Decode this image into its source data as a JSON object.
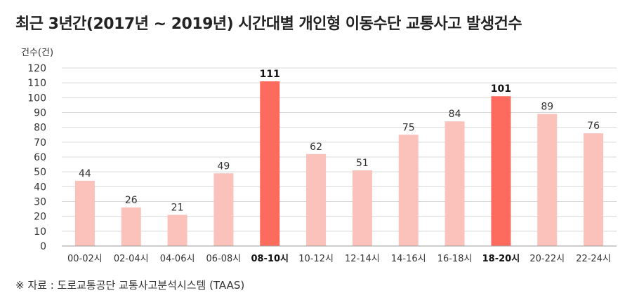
{
  "header": {
    "title": "최근 3년간(2017년 ~ 2019년) 시간대별 개인형 이동수단 교통사고 발생건수"
  },
  "footer": {
    "source": "※ 자료 : 도로교통공단 교통사고분석시스템 (TAAS)"
  },
  "chart_data": {
    "type": "bar",
    "title": "최근 3년간(2017년 ~ 2019년) 시간대별 개인형 이동수단 교통사고 발생건수",
    "ylabel": "건수(건)",
    "xlabel": "",
    "ylim": [
      0,
      120
    ],
    "yticks": [
      0,
      10,
      20,
      30,
      40,
      50,
      60,
      70,
      80,
      90,
      100,
      110,
      120
    ],
    "grid": true,
    "categories": [
      "00-02시",
      "02-04시",
      "04-06시",
      "06-08시",
      "08-10시",
      "10-12시",
      "12-14시",
      "14-16시",
      "16-18시",
      "18-20시",
      "20-22시",
      "22-24시"
    ],
    "values": [
      44,
      26,
      21,
      49,
      111,
      62,
      51,
      75,
      84,
      101,
      89,
      76
    ],
    "highlighted": [
      4,
      9
    ],
    "colors": {
      "bar": "#fbc1bb",
      "highlight": "#fd6a5e",
      "grid": "#d9d9d9",
      "axis": "#9e9e9e"
    }
  }
}
